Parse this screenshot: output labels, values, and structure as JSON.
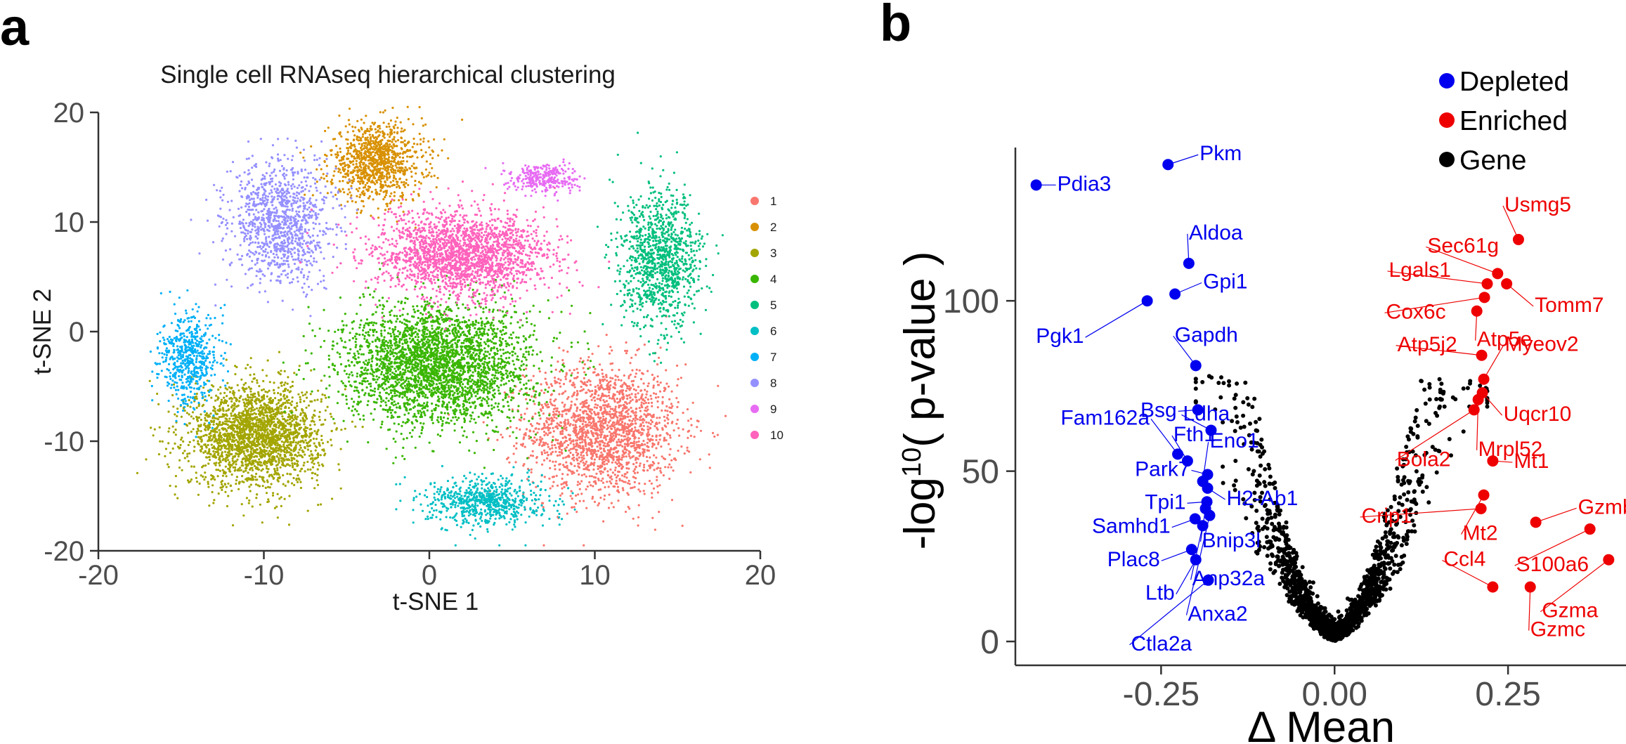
{
  "panel_a_letter": "a",
  "panel_b_letter": "b",
  "chart_data": [
    {
      "type": "scatter",
      "title": "Single cell RNAseq hierarchical clustering",
      "xlabel": "t-SNE 1",
      "ylabel": "t-SNE 2",
      "xlim": [
        -20,
        20
      ],
      "ylim": [
        -20,
        20
      ],
      "xticks": [
        "-20",
        "-10",
        "0",
        "10",
        "20"
      ],
      "yticks": [
        "-20",
        "-10",
        "0",
        "10",
        "20"
      ],
      "legend_position": "right",
      "clusters": [
        {
          "name": "1",
          "color": "#f8766d",
          "n": 1900,
          "cx": 10.5,
          "cy": -9,
          "sx": 4.2,
          "sy": 5.5
        },
        {
          "name": "2",
          "color": "#d89000",
          "n": 1000,
          "cx": -3.2,
          "cy": 15.5,
          "sx": 2.6,
          "sy": 3.2
        },
        {
          "name": "3",
          "color": "#a3a500",
          "n": 2300,
          "cx": -10.5,
          "cy": -9.5,
          "sx": 3.6,
          "sy": 4.2
        },
        {
          "name": "4",
          "color": "#39b600",
          "n": 3000,
          "cx": 0.5,
          "cy": -3,
          "sx": 5.2,
          "sy": 5.0
        },
        {
          "name": "5",
          "color": "#00bf7d",
          "n": 1100,
          "cx": 14,
          "cy": 6.5,
          "sx": 2.2,
          "sy": 5.5
        },
        {
          "name": "6",
          "color": "#00bfc4",
          "n": 700,
          "cx": 3.5,
          "cy": -15.5,
          "sx": 3.2,
          "sy": 2.0
        },
        {
          "name": "7",
          "color": "#00b0f6",
          "n": 550,
          "cx": -14.5,
          "cy": -2.5,
          "sx": 1.6,
          "sy": 3.8
        },
        {
          "name": "8",
          "color": "#9590ff",
          "n": 1100,
          "cx": -9,
          "cy": 10,
          "sx": 2.8,
          "sy": 5.0
        },
        {
          "name": "9",
          "color": "#e76bf3",
          "n": 300,
          "cx": 7,
          "cy": 14,
          "sx": 1.8,
          "sy": 1.2
        },
        {
          "name": "10",
          "color": "#ff62bc",
          "n": 2100,
          "cx": 2,
          "cy": 7,
          "sx": 4.8,
          "sy": 3.6
        }
      ]
    },
    {
      "type": "scatter",
      "title": "",
      "xlabel": "Δ Mean",
      "ylabel": "-log¹⁰( p-value )",
      "ylabel_parts": {
        "pre": "-log",
        "sup": "10",
        "post": "( p-value )"
      },
      "xlim": [
        -0.46,
        0.42
      ],
      "ylim": [
        -7,
        145
      ],
      "xticks": [
        "-0.25",
        "0.00",
        "0.25"
      ],
      "yticks": [
        "0",
        "50",
        "100"
      ],
      "legend_position": "top-right",
      "legend": [
        {
          "label": "Depleted",
          "color": "#0000ee"
        },
        {
          "label": "Enriched",
          "color": "#ee0000"
        },
        {
          "label": "Gene",
          "color": "#000000"
        }
      ],
      "background_genes": {
        "label": "Gene",
        "color": "#000000",
        "n": 1600
      },
      "labeled_genes": [
        {
          "gene": "Pkm",
          "x": -0.24,
          "y": 140,
          "group": "Depleted"
        },
        {
          "gene": "Pdia3",
          "x": -0.43,
          "y": 134,
          "group": "Depleted"
        },
        {
          "gene": "Aldoa",
          "x": -0.21,
          "y": 111,
          "group": "Depleted"
        },
        {
          "gene": "Gpi1",
          "x": -0.23,
          "y": 102,
          "group": "Depleted"
        },
        {
          "gene": "Pgk1",
          "x": -0.27,
          "y": 100,
          "group": "Depleted"
        },
        {
          "gene": "Gapdh",
          "x": -0.2,
          "y": 81,
          "group": "Depleted"
        },
        {
          "gene": "Bsg",
          "x": -0.197,
          "y": 68,
          "group": "Depleted"
        },
        {
          "gene": "Ldha",
          "x": -0.178,
          "y": 62,
          "group": "Depleted"
        },
        {
          "gene": "Fam162a",
          "x": -0.226,
          "y": 55,
          "group": "Depleted"
        },
        {
          "gene": "Fth1",
          "x": -0.212,
          "y": 53,
          "group": "Depleted"
        },
        {
          "gene": "Eno1",
          "x": -0.19,
          "y": 47,
          "group": "Depleted"
        },
        {
          "gene": "Park7",
          "x": -0.183,
          "y": 49,
          "group": "Depleted"
        },
        {
          "gene": "H2-Ab1",
          "x": -0.183,
          "y": 45,
          "group": "Depleted"
        },
        {
          "gene": "Tpi1",
          "x": -0.184,
          "y": 41,
          "group": "Depleted"
        },
        {
          "gene": "Bnip3l",
          "x": -0.186,
          "y": 39,
          "group": "Depleted"
        },
        {
          "gene": "Samhd1",
          "x": -0.201,
          "y": 36,
          "group": "Depleted"
        },
        {
          "gene": "Anp32a",
          "x": -0.19,
          "y": 34,
          "group": "Depleted"
        },
        {
          "gene": "Anxa2",
          "x": -0.18,
          "y": 37,
          "group": "Depleted"
        },
        {
          "gene": "Plac8",
          "x": -0.206,
          "y": 27,
          "group": "Depleted"
        },
        {
          "gene": "Ltb",
          "x": -0.2,
          "y": 24,
          "group": "Depleted"
        },
        {
          "gene": "Ctla2a",
          "x": -0.182,
          "y": 18,
          "group": "Depleted"
        },
        {
          "gene": "Usmg5",
          "x": 0.265,
          "y": 118,
          "group": "Enriched"
        },
        {
          "gene": "Sec61g",
          "x": 0.235,
          "y": 108,
          "group": "Enriched"
        },
        {
          "gene": "Lgals1",
          "x": 0.22,
          "y": 105,
          "group": "Enriched"
        },
        {
          "gene": "Tomm7",
          "x": 0.248,
          "y": 105,
          "group": "Enriched"
        },
        {
          "gene": "Cox6c",
          "x": 0.216,
          "y": 101,
          "group": "Enriched"
        },
        {
          "gene": "Atp5e",
          "x": 0.205,
          "y": 97,
          "group": "Enriched"
        },
        {
          "gene": "Atp5j2",
          "x": 0.212,
          "y": 84,
          "group": "Enriched"
        },
        {
          "gene": "Myeov2",
          "x": 0.215,
          "y": 77,
          "group": "Enriched"
        },
        {
          "gene": "Uqcr10",
          "x": 0.213,
          "y": 73,
          "group": "Enriched"
        },
        {
          "gene": "Mrpl52",
          "x": 0.207,
          "y": 71,
          "group": "Enriched"
        },
        {
          "gene": "Bola2",
          "x": 0.201,
          "y": 68,
          "group": "Enriched"
        },
        {
          "gene": "Mt1",
          "x": 0.228,
          "y": 53,
          "group": "Enriched"
        },
        {
          "gene": "Mt2",
          "x": 0.215,
          "y": 43,
          "group": "Enriched"
        },
        {
          "gene": "Crip1",
          "x": 0.211,
          "y": 39,
          "group": "Enriched"
        },
        {
          "gene": "Gzmb",
          "x": 0.29,
          "y": 35,
          "group": "Enriched"
        },
        {
          "gene": "S100a6",
          "x": 0.368,
          "y": 33,
          "group": "Enriched"
        },
        {
          "gene": "Ccl4",
          "x": 0.228,
          "y": 16,
          "group": "Enriched"
        },
        {
          "gene": "Gzma",
          "x": 0.395,
          "y": 24,
          "group": "Enriched"
        },
        {
          "gene": "Gzmc",
          "x": 0.282,
          "y": 16,
          "group": "Enriched"
        }
      ]
    }
  ]
}
